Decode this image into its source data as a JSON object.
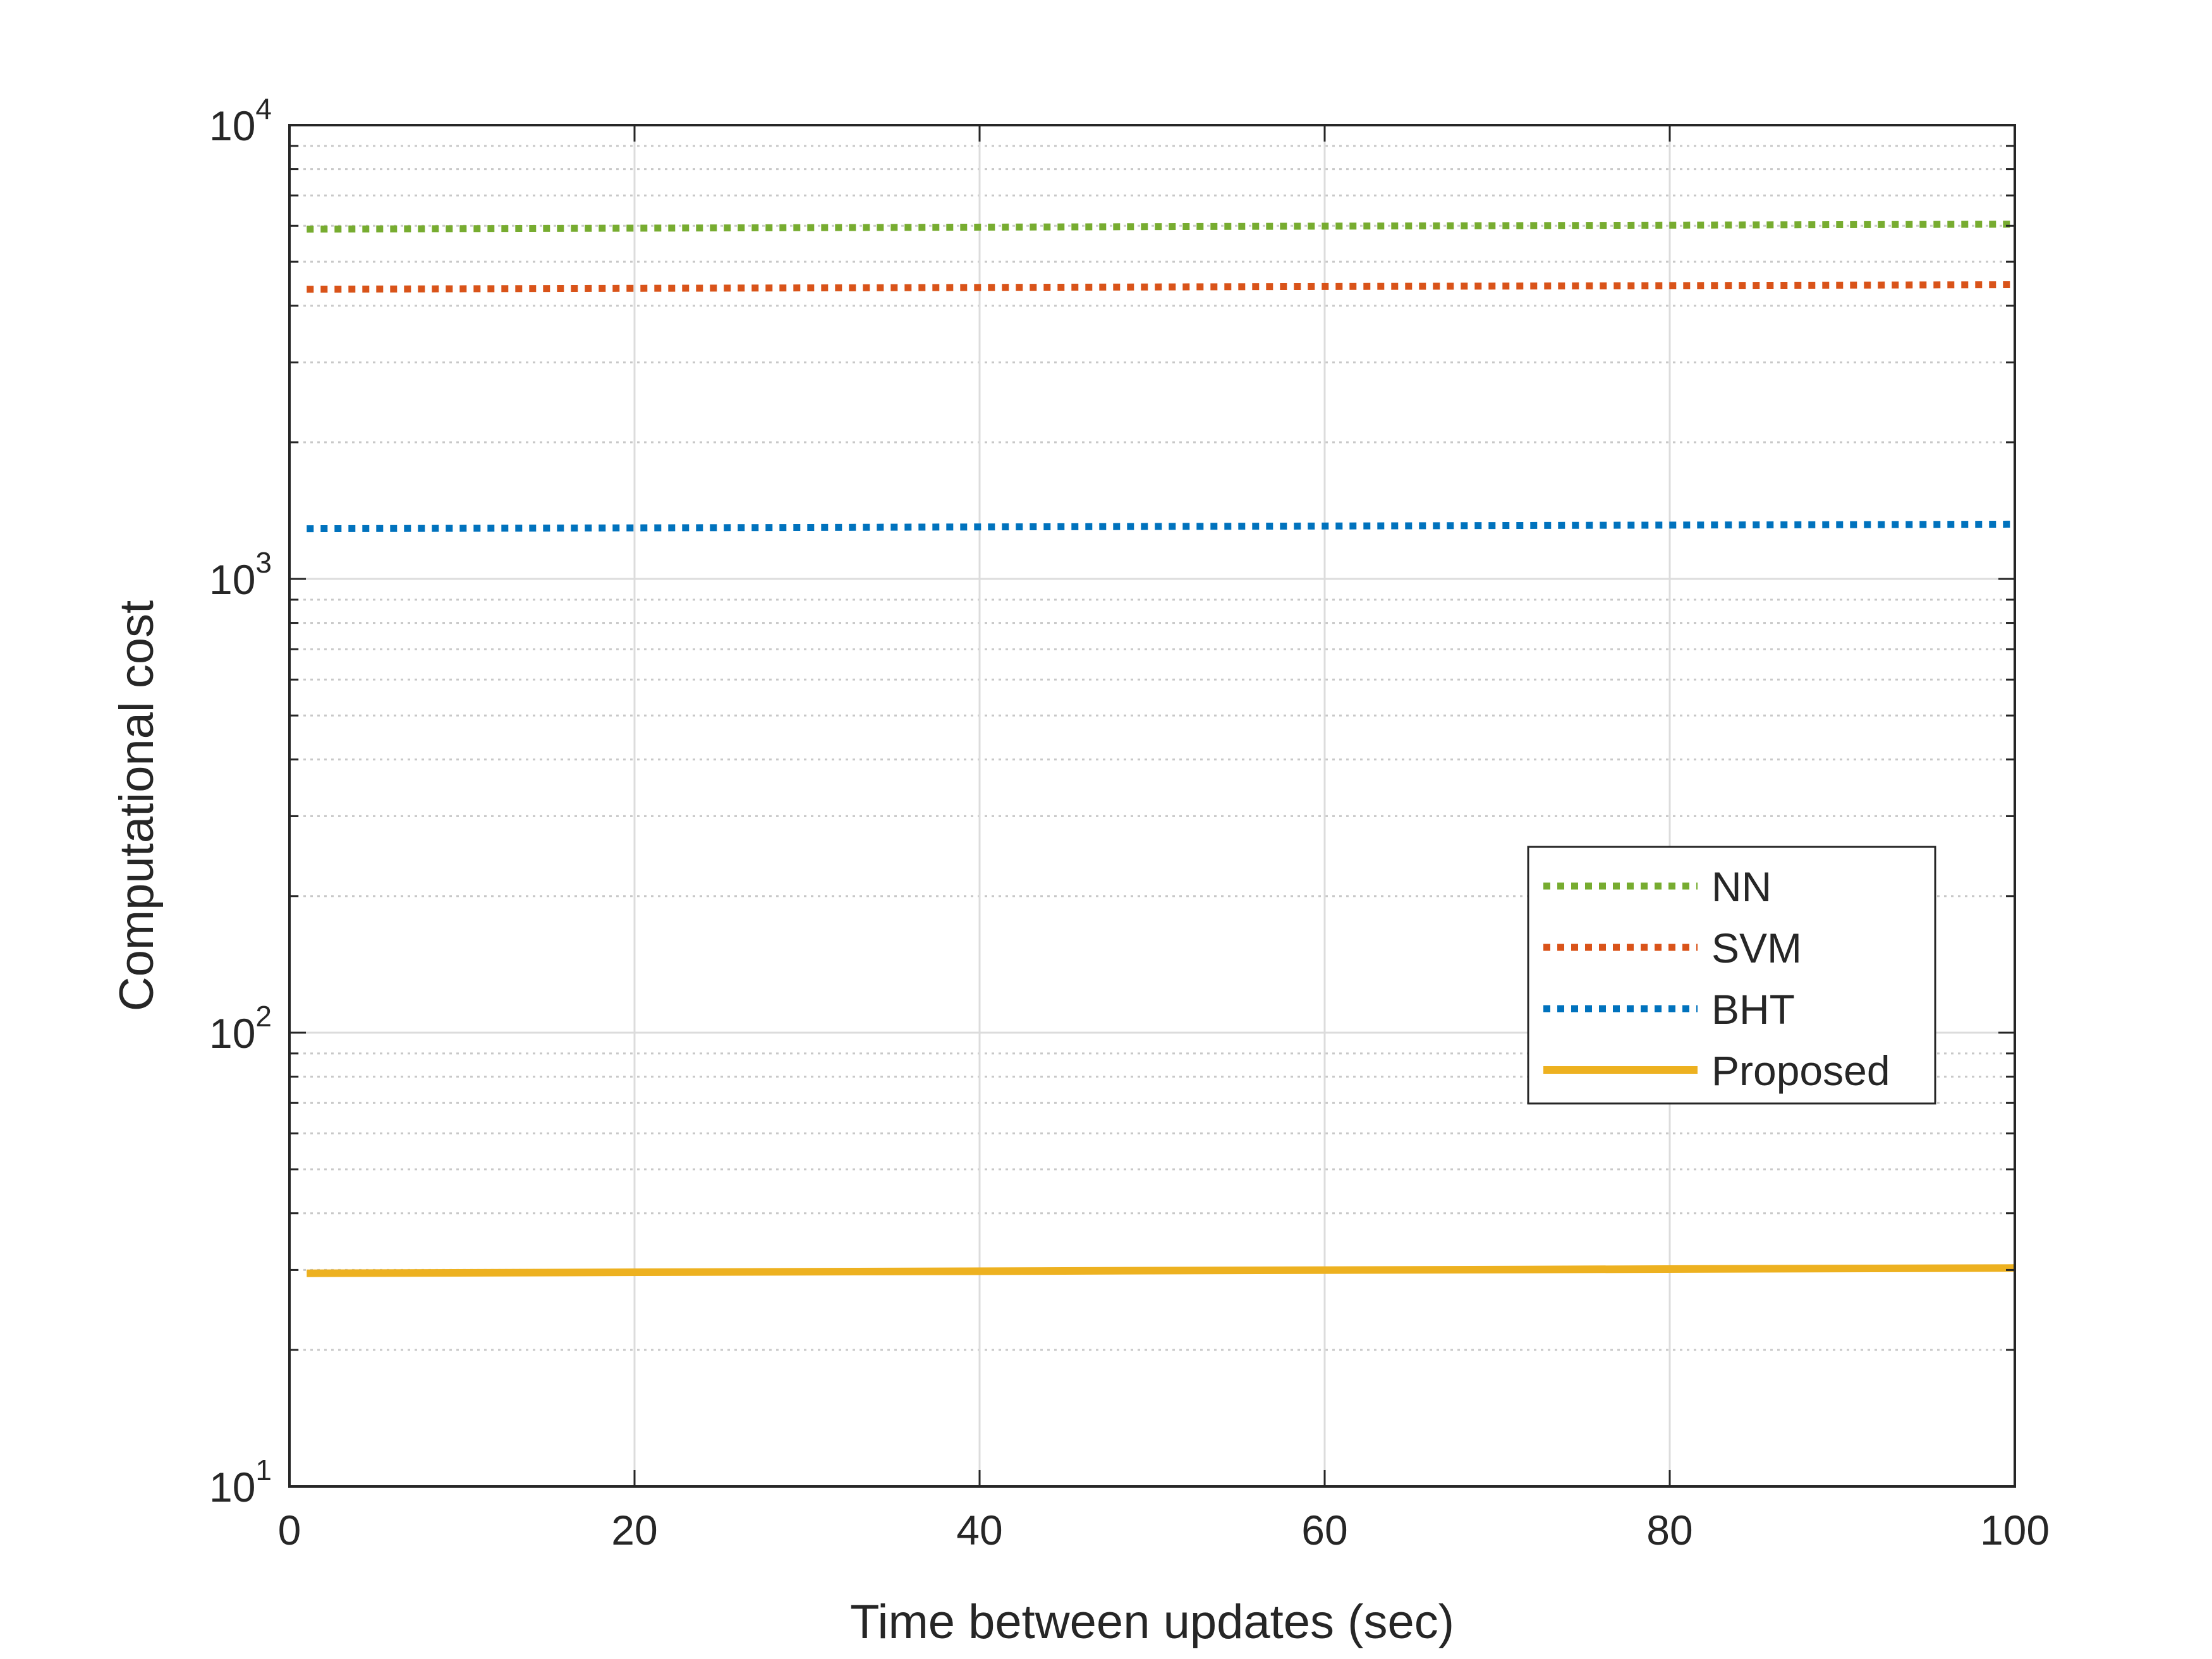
{
  "chart_data": {
    "type": "line",
    "title": "",
    "xlabel": "Time between updates (sec)",
    "ylabel": "Computational cost",
    "xlim": [
      0,
      100
    ],
    "ylim": [
      10,
      10000
    ],
    "yscale": "log",
    "grid": true,
    "minor_grid": true,
    "legend_position": "center-right",
    "x_ticks": [
      "0",
      "20",
      "40",
      "60",
      "80",
      "100"
    ],
    "y_ticks": [
      {
        "base": "10",
        "exp": "1",
        "value": 10
      },
      {
        "base": "10",
        "exp": "2",
        "value": 100
      },
      {
        "base": "10",
        "exp": "3",
        "value": 1000
      },
      {
        "base": "10",
        "exp": "4",
        "value": 10000
      }
    ],
    "series": [
      {
        "name": "NN",
        "color": "#77ac30",
        "style": "dotted",
        "x": [
          1,
          100
        ],
        "y": [
          5900,
          6050
        ]
      },
      {
        "name": "SVM",
        "color": "#d95319",
        "style": "dotted",
        "x": [
          1,
          100
        ],
        "y": [
          4350,
          4450
        ]
      },
      {
        "name": "BHT",
        "color": "#0072bd",
        "style": "dotted",
        "x": [
          1,
          100
        ],
        "y": [
          1290,
          1320
        ]
      },
      {
        "name": "Proposed",
        "color": "#edb120",
        "style": "solid",
        "x": [
          1,
          100
        ],
        "y": [
          29.5,
          30.3
        ]
      }
    ]
  }
}
